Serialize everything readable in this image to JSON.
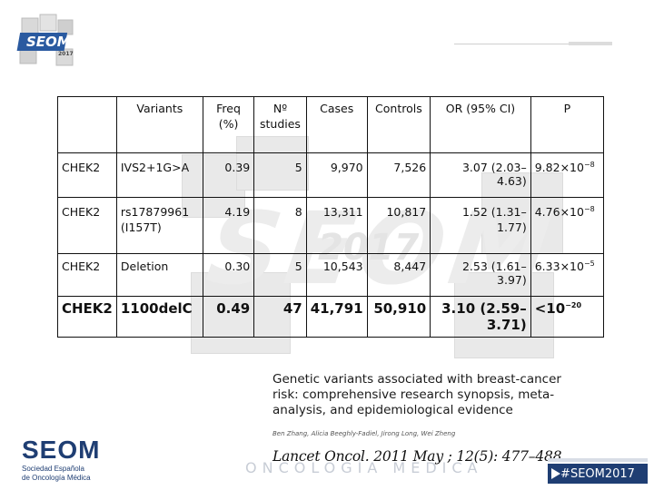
{
  "brand": {
    "logo_text": "SEOM",
    "logo_year": "2017",
    "footer_logo_name": "SEOM",
    "footer_logo_sub_1": "Sociedad Española",
    "footer_logo_sub_2": "de Oncología Médica",
    "hashtag": "#SEOM2017",
    "accent": "#1f3e73"
  },
  "watermark": {
    "text": "SEOM",
    "year": "2017"
  },
  "table": {
    "headers": {
      "gene": "",
      "variants": "Variants",
      "freq_1": "Freq",
      "freq_2": "(%)",
      "studies_1": "Nº",
      "studies_2": "studies",
      "cases": "Cases",
      "controls": "Controls",
      "or": "OR (95% CI)",
      "p": "P"
    },
    "rows": [
      {
        "gene": "CHEK2",
        "variant_1": "IVS2+1G>A",
        "variant_2": "",
        "freq": "0.39",
        "studies": "5",
        "cases": "9,970",
        "controls": "7,526",
        "or": "3.07 (2.03–4.63)",
        "p_base": "9.82×10",
        "p_exp": "−8"
      },
      {
        "gene": "CHEK2",
        "variant_1": "rs17879961",
        "variant_2": "(I157T)",
        "freq": "4.19",
        "studies": "8",
        "cases": "13,311",
        "controls": "10,817",
        "or": "1.52 (1.31–1.77)",
        "p_base": "4.76×10",
        "p_exp": "−8"
      },
      {
        "gene": "CHEK2",
        "variant_1": "Deletion",
        "variant_2": "",
        "freq": "0.30",
        "studies": "5",
        "cases": "10,543",
        "controls": "8,447",
        "or": "2.53 (1.61–3.97)",
        "p_base": "6.33×10",
        "p_exp": "−5"
      },
      {
        "gene": "CHEK2",
        "variant_1": "1100delC",
        "variant_2": "",
        "freq": "0.49",
        "studies": "47",
        "cases": "41,791",
        "controls": "50,910",
        "or": "3.10 (2.59–3.71)",
        "p_base": "<10",
        "p_exp": "−20"
      }
    ]
  },
  "paper": {
    "title": "Genetic variants associated with breast-cancer risk: comprehensive research synopsis, meta-analysis, and epidemiological evidence",
    "authors": "Ben Zhang, Alicia Beeghly-Fadiel, Jirong Long, Wei Zheng",
    "reference": "Lancet Oncol. 2011 May ; 12(5): 477–488.",
    "faint_banner": "ONCOLOGÍA MÉDICA"
  }
}
